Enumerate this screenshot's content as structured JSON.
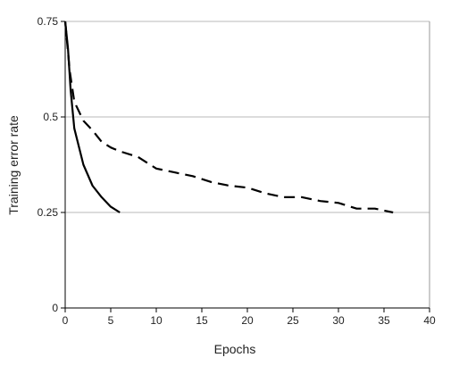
{
  "chart_data": {
    "type": "line",
    "title": "",
    "xlabel": "Epochs",
    "ylabel": "Training error rate",
    "xlim": [
      0,
      40
    ],
    "ylim": [
      0,
      0.75
    ],
    "xticks": [
      0,
      5,
      10,
      15,
      20,
      25,
      30,
      35,
      40
    ],
    "xtick_labels": [
      "0",
      "5",
      "10",
      "15",
      "20",
      "25",
      "30",
      "35",
      "40"
    ],
    "yticks": [
      0,
      0.25,
      0.5,
      0.75
    ],
    "ytick_labels": [
      "0",
      "0.25",
      "0.5",
      "0.75"
    ],
    "grid": "horizontal",
    "legend": "none",
    "series": [
      {
        "style": "solid",
        "color": "#000000",
        "x": [
          0,
          0.3,
          0.6,
          1,
          2,
          3,
          4,
          5,
          6
        ],
        "y": [
          0.75,
          0.68,
          0.57,
          0.47,
          0.375,
          0.32,
          0.29,
          0.265,
          0.25
        ]
      },
      {
        "style": "dashed",
        "color": "#000000",
        "x": [
          0,
          0.5,
          1,
          2,
          3,
          4,
          5,
          6,
          8,
          10,
          12,
          14,
          16,
          18,
          20,
          22,
          24,
          26,
          28,
          30,
          32,
          34,
          36
        ],
        "y": [
          0.75,
          0.62,
          0.54,
          0.49,
          0.465,
          0.435,
          0.42,
          0.41,
          0.395,
          0.365,
          0.355,
          0.345,
          0.33,
          0.32,
          0.315,
          0.3,
          0.29,
          0.29,
          0.28,
          0.275,
          0.26,
          0.26,
          0.25
        ]
      }
    ]
  }
}
